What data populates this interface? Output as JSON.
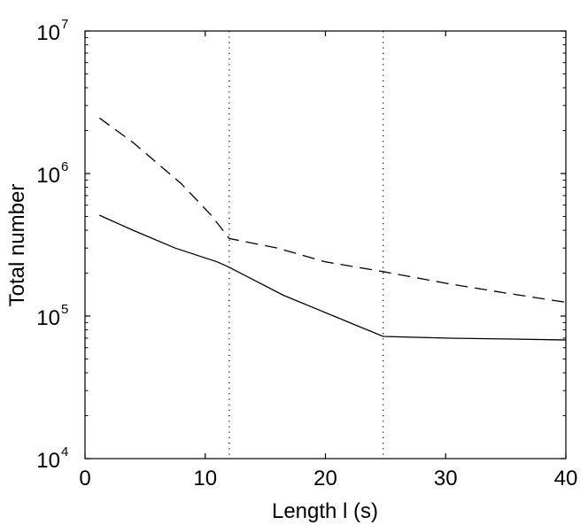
{
  "chart_data": {
    "type": "line",
    "title": "",
    "xlabel": "Length l (s)",
    "ylabel": "Total number",
    "xlim": [
      0,
      40
    ],
    "ylim": [
      10000,
      10000000
    ],
    "yscale": "log",
    "grid": false,
    "x_ticks": [
      0,
      10,
      20,
      30,
      40
    ],
    "x_tick_labels": [
      "0",
      "10",
      "20",
      "30",
      "40"
    ],
    "y_ticks": [
      {
        "value": 10000,
        "base": "10",
        "exp": "4"
      },
      {
        "value": 100000,
        "base": "10",
        "exp": "5"
      },
      {
        "value": 1000000,
        "base": "10",
        "exp": "6"
      },
      {
        "value": 10000000,
        "base": "10",
        "exp": "7"
      }
    ],
    "vlines": [
      {
        "x": 12,
        "style": "dotted"
      },
      {
        "x": 24.8,
        "style": "dotted"
      }
    ],
    "series": [
      {
        "style": "solid",
        "color": "#000000",
        "x": [
          1.2,
          4,
          7.5,
          11,
          12,
          14,
          16.5,
          19.5,
          22,
          24.8,
          30,
          35,
          40
        ],
        "y": [
          510000,
          400000,
          300000,
          240000,
          220000,
          180000,
          140000,
          110000,
          90000,
          72000,
          70000,
          69000,
          68000
        ]
      },
      {
        "style": "dashed",
        "color": "#000000",
        "x": [
          1.2,
          4,
          8,
          10.5,
          12,
          16,
          20,
          24.8,
          30,
          35,
          40
        ],
        "y": [
          2450000,
          1650000,
          850000,
          510000,
          350000,
          300000,
          240000,
          205000,
          170000,
          145000,
          125000
        ]
      }
    ]
  }
}
